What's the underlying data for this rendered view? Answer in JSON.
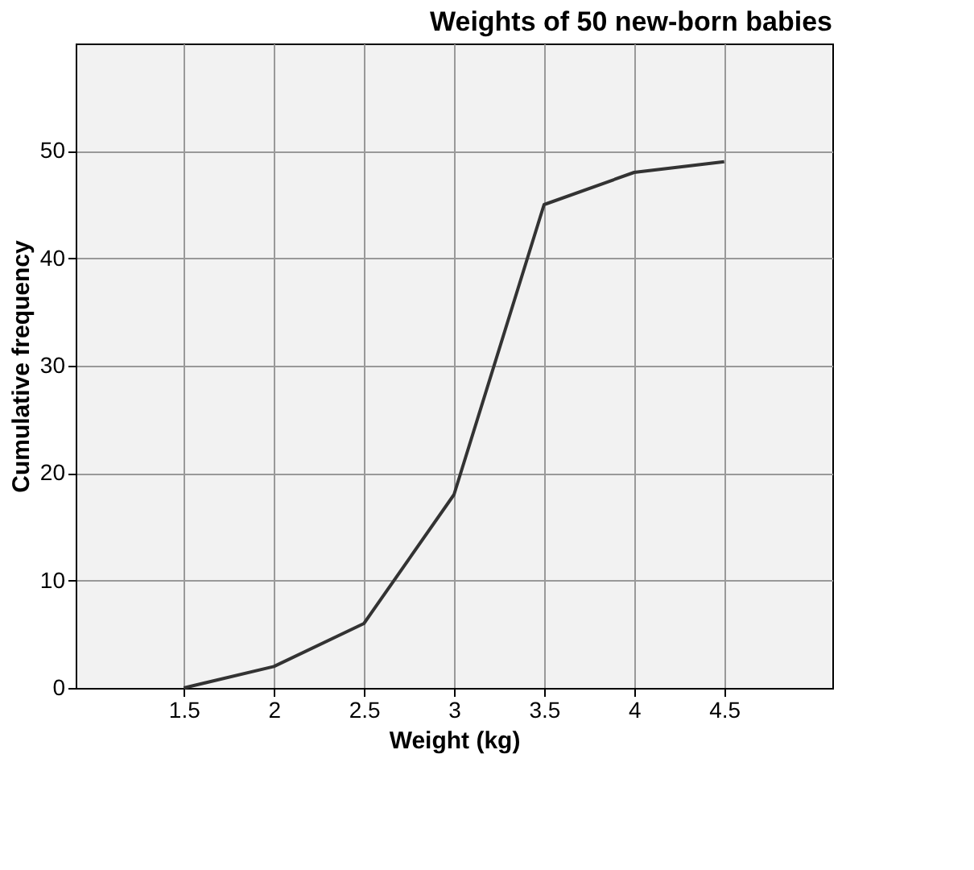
{
  "chart_data": {
    "type": "line",
    "title": "Weights of 50 new-born babies",
    "xlabel": "Weight (kg)",
    "ylabel": "Cumulative frequency",
    "x": [
      1.5,
      2,
      2.5,
      3,
      3.5,
      4,
      4.5
    ],
    "series": [
      {
        "color": "#333333",
        "values": [
          0,
          2,
          6,
          18,
          45,
          48,
          49
        ]
      }
    ],
    "xlim": [
      0.9,
      5.1
    ],
    "xticks": [
      1.5,
      2,
      2.5,
      3,
      3.5,
      4,
      4.5
    ],
    "ylim": [
      0,
      60
    ],
    "yticks": [
      0,
      10,
      20,
      30,
      40,
      50
    ],
    "grid": true,
    "marker": "none",
    "line_style": "solid"
  }
}
